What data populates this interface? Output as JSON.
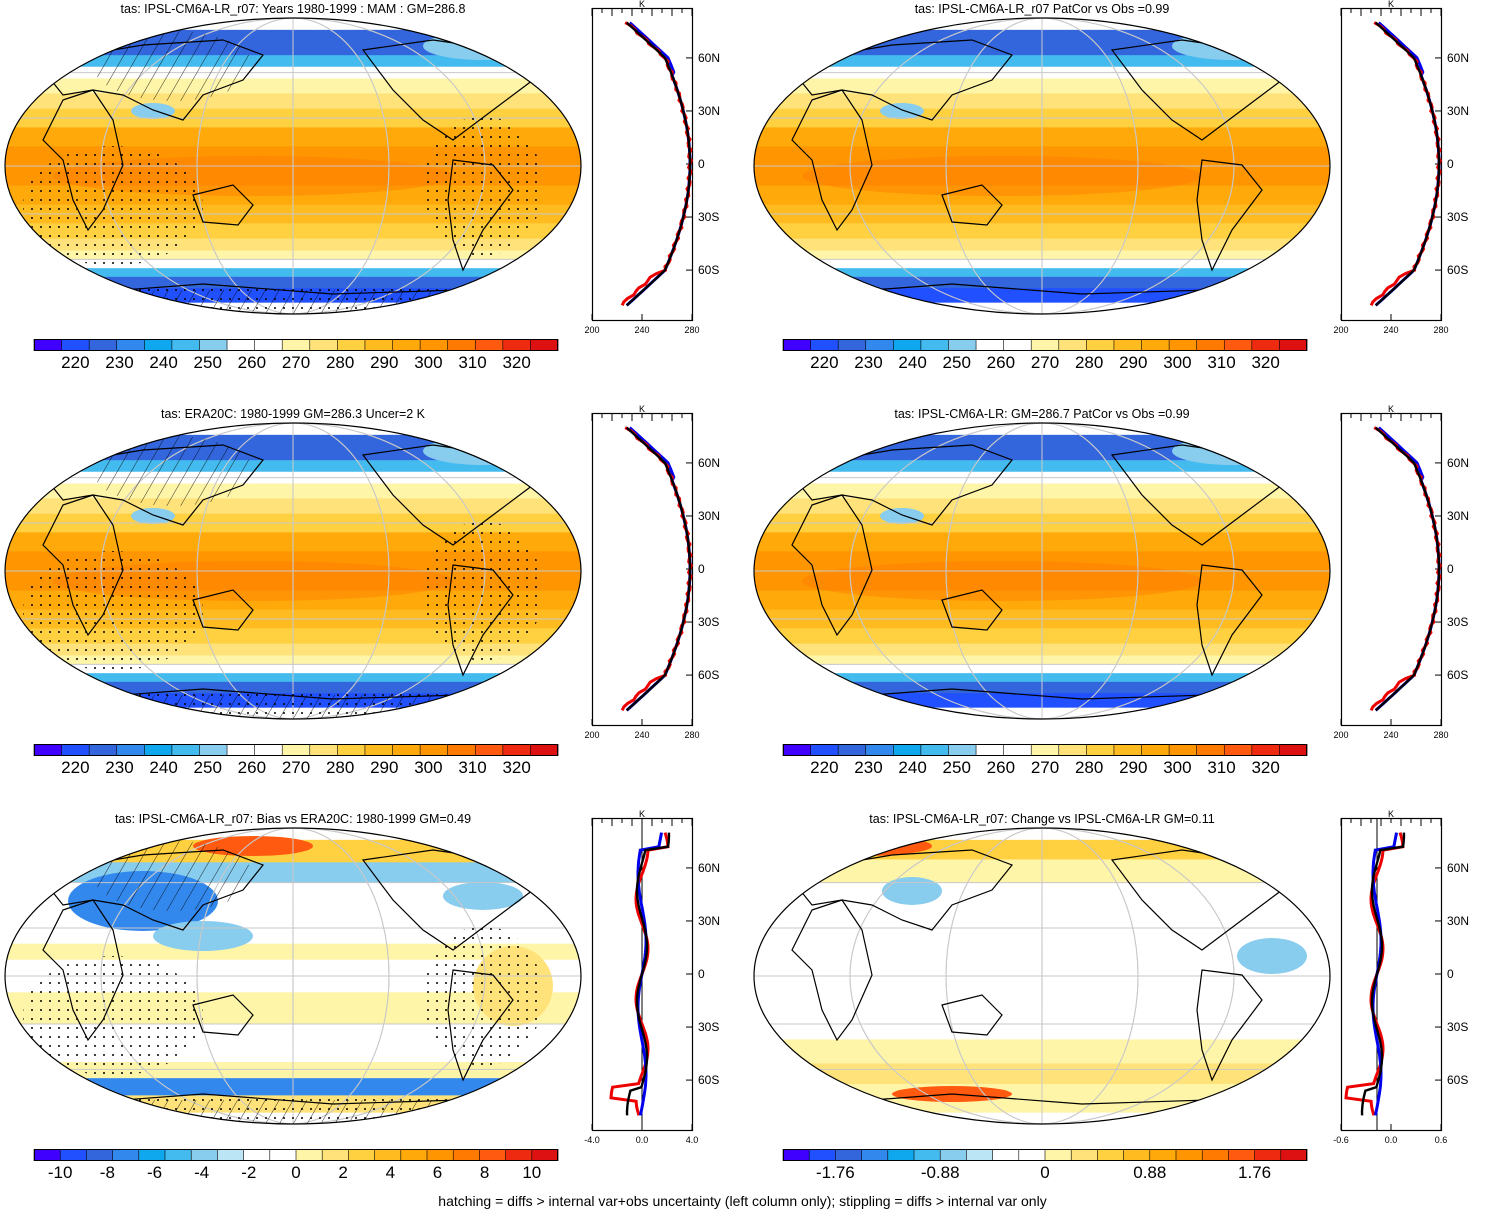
{
  "footer": "hatching = diffs > internal var+obs uncertainty (left column only); stippling = diffs > internal var only",
  "panels": [
    {
      "title": "tas: IPSL-CM6A-LR_r07: Years 1980-1999 : MAM : GM=286.8",
      "kind": "abs",
      "colorbar": {
        "labels": [
          "220",
          "230",
          "240",
          "250",
          "260",
          "270",
          "280",
          "290",
          "300",
          "310",
          "320"
        ],
        "colors": [
          "#3f00ff",
          "#2050ff",
          "#3366dd",
          "#3388ee",
          "#0fa8ee",
          "#44bbee",
          "#88ccee",
          "#ffffff",
          "#ffffff",
          "#fff5a8",
          "#ffe37a",
          "#ffd040",
          "#ffbb20",
          "#ffa90a",
          "#ff9500",
          "#ff7a00",
          "#ff5a10",
          "#ee2a10",
          "#dd1111"
        ]
      },
      "profile": {
        "unit": "K",
        "x_ticks": [
          "200",
          "240",
          "280"
        ],
        "lat_ticks": [
          "60N",
          "30N",
          "0",
          "30S",
          "60S"
        ]
      }
    },
    {
      "title": "tas: IPSL-CM6A-LR_r07 PatCor vs Obs =0.99",
      "kind": "abs",
      "colorbar": {
        "labels": [
          "220",
          "230",
          "240",
          "250",
          "260",
          "270",
          "280",
          "290",
          "300",
          "310",
          "320"
        ],
        "colors": [
          "#3f00ff",
          "#2050ff",
          "#3366dd",
          "#3388ee",
          "#0fa8ee",
          "#44bbee",
          "#88ccee",
          "#ffffff",
          "#ffffff",
          "#fff5a8",
          "#ffe37a",
          "#ffd040",
          "#ffbb20",
          "#ffa90a",
          "#ff9500",
          "#ff7a00",
          "#ff5a10",
          "#ee2a10",
          "#dd1111"
        ]
      },
      "profile": {
        "unit": "K",
        "x_ticks": [
          "200",
          "240",
          "280"
        ],
        "lat_ticks": [
          "60N",
          "30N",
          "0",
          "30S",
          "60S"
        ]
      }
    },
    {
      "title": "tas: ERA20C: 1980-1999 GM=286.3 Uncer=2 K",
      "kind": "abs",
      "colorbar": {
        "labels": [
          "220",
          "230",
          "240",
          "250",
          "260",
          "270",
          "280",
          "290",
          "300",
          "310",
          "320"
        ],
        "colors": [
          "#3f00ff",
          "#2050ff",
          "#3366dd",
          "#3388ee",
          "#0fa8ee",
          "#44bbee",
          "#88ccee",
          "#ffffff",
          "#ffffff",
          "#fff5a8",
          "#ffe37a",
          "#ffd040",
          "#ffbb20",
          "#ffa90a",
          "#ff9500",
          "#ff7a00",
          "#ff5a10",
          "#ee2a10",
          "#dd1111"
        ]
      },
      "profile": {
        "unit": "K",
        "x_ticks": [
          "200",
          "240",
          "280"
        ],
        "lat_ticks": [
          "60N",
          "30N",
          "0",
          "30S",
          "60S"
        ]
      }
    },
    {
      "title": "tas: IPSL-CM6A-LR: GM=286.7 PatCor vs Obs =0.99",
      "kind": "abs",
      "colorbar": {
        "labels": [
          "220",
          "230",
          "240",
          "250",
          "260",
          "270",
          "280",
          "290",
          "300",
          "310",
          "320"
        ],
        "colors": [
          "#3f00ff",
          "#2050ff",
          "#3366dd",
          "#3388ee",
          "#0fa8ee",
          "#44bbee",
          "#88ccee",
          "#ffffff",
          "#ffffff",
          "#fff5a8",
          "#ffe37a",
          "#ffd040",
          "#ffbb20",
          "#ffa90a",
          "#ff9500",
          "#ff7a00",
          "#ff5a10",
          "#ee2a10",
          "#dd1111"
        ]
      },
      "profile": {
        "unit": "K",
        "x_ticks": [
          "200",
          "240",
          "280"
        ],
        "lat_ticks": [
          "60N",
          "30N",
          "0",
          "30S",
          "60S"
        ]
      }
    },
    {
      "title": "tas: IPSL-CM6A-LR_r07: Bias vs ERA20C: 1980-1999 GM=0.49",
      "kind": "bias",
      "colorbar": {
        "labels": [
          "-10",
          "-8",
          "-6",
          "-4",
          "-2",
          "0",
          "2",
          "4",
          "6",
          "8",
          "10"
        ],
        "colors": [
          "#3f00ff",
          "#2050ff",
          "#3366dd",
          "#3388ee",
          "#0fa8ee",
          "#44bbee",
          "#88ccee",
          "#bbe4f4",
          "#ffffff",
          "#ffffff",
          "#fff5a8",
          "#ffe37a",
          "#ffd040",
          "#ffbb20",
          "#ffa90a",
          "#ff9500",
          "#ff7a00",
          "#ff5a10",
          "#ee2a10",
          "#dd1111"
        ]
      },
      "profile": {
        "unit": "K",
        "x_ticks": [
          "-4.0",
          "0.0",
          "4.0"
        ],
        "lat_ticks": [
          "60N",
          "30N",
          "0",
          "30S",
          "60S"
        ]
      }
    },
    {
      "title": "tas: IPSL-CM6A-LR_r07: Change vs IPSL-CM6A-LR GM=0.11",
      "kind": "change",
      "colorbar": {
        "labels": [
          "-1.76",
          "-0.88",
          "0",
          "0.88",
          "1.76"
        ],
        "colors": [
          "#3f00ff",
          "#2050ff",
          "#3366dd",
          "#3388ee",
          "#0fa8ee",
          "#44bbee",
          "#88ccee",
          "#bbe4f4",
          "#ffffff",
          "#ffffff",
          "#fff5a8",
          "#ffe37a",
          "#ffd040",
          "#ffbb20",
          "#ffa90a",
          "#ff9500",
          "#ff7a00",
          "#ff5a10",
          "#ee2a10",
          "#dd1111"
        ]
      },
      "profile": {
        "unit": "K",
        "x_ticks": [
          "-0.6",
          "0.0",
          "0.6"
        ],
        "lat_ticks": [
          "60N",
          "30N",
          "0",
          "30S",
          "60S"
        ]
      }
    }
  ]
}
